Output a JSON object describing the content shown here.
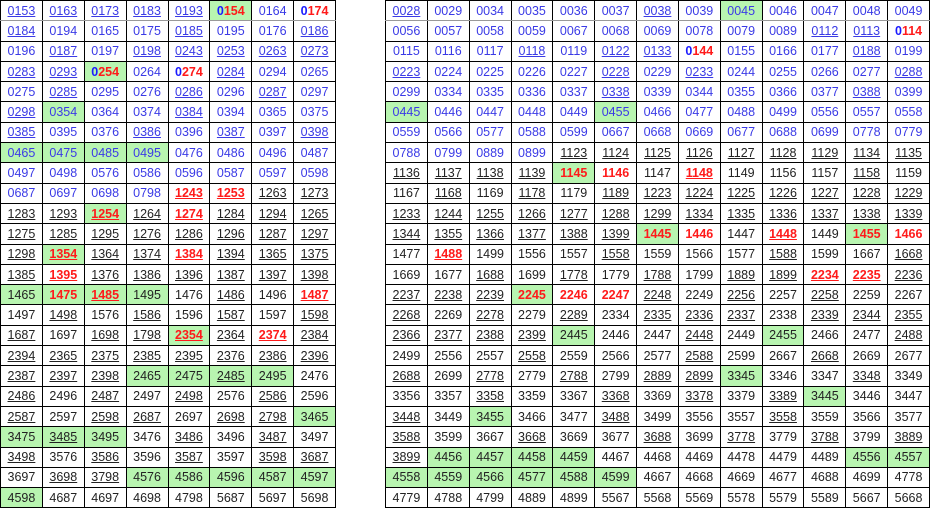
{
  "highlight_colors": {
    "green_fill": "#b8f5b0",
    "red_text": "#ff1a1a",
    "blue_text": "#1a1aff"
  },
  "flag_legend": {
    "u": "underlined",
    "g": "green fill",
    "r": "red bold",
    "b": "first digit blue"
  },
  "left_table": [
    [
      "0153|u",
      "0163|u",
      "0173|u",
      "0183|u",
      "0193|u",
      "0154|grb",
      "0164|",
      "0174|rb"
    ],
    [
      "0184|u",
      "0194|",
      "0165|",
      "0175|",
      "0185|u",
      "0195|",
      "0176|",
      "0186|u"
    ],
    [
      "0196|",
      "0187|u",
      "0197|",
      "0198|u",
      "0243|u",
      "0253|u",
      "0263|u",
      "0273|u"
    ],
    [
      "0283|u",
      "0293|u",
      "0254|grb",
      "0264|",
      "0274|rb",
      "0284|u",
      "0294|",
      "0265|"
    ],
    [
      "0275|",
      "0285|u",
      "0295|",
      "0276|",
      "0286|u",
      "0296|",
      "0287|u",
      "0297|"
    ],
    [
      "0298|u",
      "0354|g",
      "0364|",
      "0374|",
      "0384|u",
      "0394|",
      "0365|",
      "0375|"
    ],
    [
      "0385|u",
      "0395|",
      "0376|",
      "0386|u",
      "0396|",
      "0387|u",
      "0397|",
      "0398|u"
    ],
    [
      "0465|g",
      "0475|g",
      "0485|g",
      "0495|g",
      "0476|",
      "0486|",
      "0496|",
      "0487|"
    ],
    [
      "0497|",
      "0498|",
      "0576|",
      "0586|",
      "0596|",
      "0587|",
      "0597|",
      "0598|"
    ],
    [
      "0687|",
      "0697|",
      "0698|",
      "0798|",
      "1243|ru",
      "1253|ru",
      "1263|u",
      "1273|u"
    ],
    [
      "1283|u",
      "1293|u",
      "1254|gru",
      "1264|u",
      "1274|ru",
      "1284|u",
      "1294|u",
      "1265|u"
    ],
    [
      "1275|u",
      "1285|u",
      "1295|u",
      "1276|u",
      "1286|u",
      "1296|u",
      "1287|u",
      "1297|u"
    ],
    [
      "1298|u",
      "1354|gru",
      "1364|u",
      "1374|u",
      "1384|ru",
      "1394|u",
      "1365|u",
      "1375|u"
    ],
    [
      "1385|u",
      "1395|ru",
      "1376|u",
      "1386|u",
      "1396|u",
      "1387|u",
      "1397|u",
      "1398|u"
    ],
    [
      "1465|g",
      "1475|gr",
      "1485|gru",
      "1495|g",
      "1476|",
      "1486|u",
      "1496|",
      "1487|ru"
    ],
    [
      "1497|",
      "1498|u",
      "1576|",
      "1586|u",
      "1596|",
      "1587|u",
      "1597|",
      "1598|u"
    ],
    [
      "1687|u",
      "1697|",
      "1698|u",
      "1798|u",
      "2354|gru",
      "2364|u",
      "2374|ru",
      "2384|u"
    ],
    [
      "2394|u",
      "2365|u",
      "2375|u",
      "2385|u",
      "2395|u",
      "2376|u",
      "2386|u",
      "2396|u"
    ],
    [
      "2387|u",
      "2397|u",
      "2398|u",
      "2465|g",
      "2475|g",
      "2485|gu",
      "2495|g",
      "2476|"
    ],
    [
      "2486|u",
      "2496|",
      "2487|u",
      "2497|",
      "2498|u",
      "2576|",
      "2586|u",
      "2596|"
    ],
    [
      "2587|u",
      "2597|",
      "2598|u",
      "2687|u",
      "2697|",
      "2698|u",
      "2798|u",
      "3465|g"
    ],
    [
      "3475|g",
      "3485|gu",
      "3495|g",
      "3476|",
      "3486|u",
      "3496|",
      "3487|u",
      "3497|"
    ],
    [
      "3498|u",
      "3576|",
      "3586|u",
      "3596|",
      "3587|u",
      "3597|",
      "3598|u",
      "3687|u"
    ],
    [
      "3697|",
      "3698|u",
      "3798|u",
      "4576|g",
      "4586|g",
      "4596|g",
      "4587|g",
      "4597|g"
    ],
    [
      "4598|g",
      "4687|",
      "4697|",
      "4698|",
      "4798|",
      "5687|",
      "5697|",
      "5698|"
    ]
  ],
  "right_table": [
    [
      "0028|u",
      "0029|",
      "0034|",
      "0035|",
      "0036|",
      "0037|",
      "0038|u",
      "0039|",
      "0045|g",
      "0046|",
      "0047|",
      "0048|",
      "0049|"
    ],
    [
      "0056|",
      "0057|",
      "0058|",
      "0059|",
      "0067|",
      "0068|",
      "0069|",
      "0078|",
      "0079|",
      "0089|",
      "0112|u",
      "0113|u",
      "0114|rb"
    ],
    [
      "0115|",
      "0116|",
      "0117|",
      "0118|u",
      "0119|",
      "0122|u",
      "0133|u",
      "0144|rb",
      "0155|",
      "0166|",
      "0177|",
      "0188|u",
      "0199|"
    ],
    [
      "0223|u",
      "0224|",
      "0225|",
      "0226|",
      "0227|",
      "0228|u",
      "0229|",
      "0233|u",
      "0244|",
      "0255|",
      "0266|",
      "0277|",
      "0288|u"
    ],
    [
      "0299|",
      "0334|",
      "0335|",
      "0336|",
      "0337|",
      "0338|u",
      "0339|",
      "0344|",
      "0355|",
      "0366|",
      "0377|",
      "0388|u",
      "0399|"
    ],
    [
      "0445|g",
      "0446|",
      "0447|",
      "0448|",
      "0449|",
      "0455|g",
      "0466|",
      "0477|",
      "0488|",
      "0499|",
      "0556|",
      "0557|",
      "0558|"
    ],
    [
      "0559|",
      "0566|",
      "0577|",
      "0588|",
      "0599|",
      "0667|",
      "0668|",
      "0669|",
      "0677|",
      "0688|",
      "0699|",
      "0778|",
      "0779|"
    ],
    [
      "0788|",
      "0799|",
      "0889|",
      "0899|",
      "1123|u",
      "1124|u",
      "1125|u",
      "1126|u",
      "1127|u",
      "1128|u",
      "1129|u",
      "1134|u",
      "1135|u"
    ],
    [
      "1136|u",
      "1137|u",
      "1138|u",
      "1139|u",
      "1145|gr",
      "1146|r",
      "1147|",
      "1148|ru",
      "1149|",
      "1156|",
      "1157|",
      "1158|u",
      "1159|"
    ],
    [
      "1167|",
      "1168|u",
      "1169|",
      "1178|u",
      "1179|",
      "1189|u",
      "1223|u",
      "1224|u",
      "1225|u",
      "1226|u",
      "1227|u",
      "1228|u",
      "1229|u"
    ],
    [
      "1233|u",
      "1244|u",
      "1255|u",
      "1266|u",
      "1277|u",
      "1288|u",
      "1299|u",
      "1334|u",
      "1335|u",
      "1336|u",
      "1337|u",
      "1338|u",
      "1339|u"
    ],
    [
      "1344|u",
      "1355|u",
      "1366|u",
      "1377|u",
      "1388|u",
      "1399|u",
      "1445|gr",
      "1446|r",
      "1447|",
      "1448|ru",
      "1449|",
      "1455|gr",
      "1466|r"
    ],
    [
      "1477|",
      "1488|ru",
      "1499|",
      "1556|",
      "1557|",
      "1558|u",
      "1559|",
      "1566|",
      "1577|",
      "1588|u",
      "1599|",
      "1667|",
      "1668|u"
    ],
    [
      "1669|",
      "1677|",
      "1688|u",
      "1699|",
      "1778|u",
      "1779|",
      "1788|u",
      "1799|",
      "1889|u",
      "1899|u",
      "2234|ru",
      "2235|ru",
      "2236|u"
    ],
    [
      "2237|u",
      "2238|u",
      "2239|u",
      "2245|gr",
      "2246|r",
      "2247|r",
      "2248|u",
      "2249|",
      "2256|u",
      "2257|",
      "2258|u",
      "2259|",
      "2267|"
    ],
    [
      "2268|u",
      "2269|",
      "2278|u",
      "2279|",
      "2289|u",
      "2334|",
      "2335|u",
      "2336|u",
      "2337|u",
      "2338|",
      "2339|u",
      "2344|u",
      "2355|u"
    ],
    [
      "2366|u",
      "2377|u",
      "2388|u",
      "2399|u",
      "2445|g",
      "2446|",
      "2447|",
      "2448|u",
      "2449|",
      "2455|g",
      "2466|",
      "2477|",
      "2488|u"
    ],
    [
      "2499|",
      "2556|",
      "2557|",
      "2558|u",
      "2559|",
      "2566|",
      "2577|",
      "2588|u",
      "2599|",
      "2667|",
      "2668|u",
      "2669|",
      "2677|"
    ],
    [
      "2688|u",
      "2699|",
      "2778|u",
      "2779|",
      "2788|u",
      "2799|",
      "2889|u",
      "2899|u",
      "3345|g",
      "3346|",
      "3347|",
      "3348|u",
      "3349|"
    ],
    [
      "3356|",
      "3357|",
      "3358|u",
      "3359|",
      "3367|",
      "3368|u",
      "3369|",
      "3378|u",
      "3379|",
      "3389|u",
      "3445|g",
      "3446|",
      "3447|"
    ],
    [
      "3448|u",
      "3449|",
      "3455|g",
      "3466|",
      "3477|",
      "3488|u",
      "3499|",
      "3556|",
      "3557|",
      "3558|u",
      "3559|",
      "3566|",
      "3577|"
    ],
    [
      "3588|u",
      "3599|",
      "3667|",
      "3668|u",
      "3669|",
      "3677|",
      "3688|u",
      "3699|",
      "3778|u",
      "3779|",
      "3788|u",
      "3799|",
      "3889|u"
    ],
    [
      "3899|u",
      "4456|g",
      "4457|g",
      "4458|g",
      "4459|g",
      "4467|",
      "4468|",
      "4469|",
      "4478|",
      "4479|",
      "4489|",
      "4556|g",
      "4557|g"
    ],
    [
      "4558|g",
      "4559|g",
      "4566|g",
      "4577|g",
      "4588|g",
      "4599|g",
      "4667|",
      "4668|",
      "4669|",
      "4677|",
      "4688|",
      "4699|",
      "4778|"
    ],
    [
      "4779|",
      "4788|",
      "4799|",
      "4889|",
      "4899|",
      "5567|",
      "5568|",
      "5569|",
      "5578|",
      "5579|",
      "5589|",
      "5667|",
      "5668|"
    ]
  ]
}
